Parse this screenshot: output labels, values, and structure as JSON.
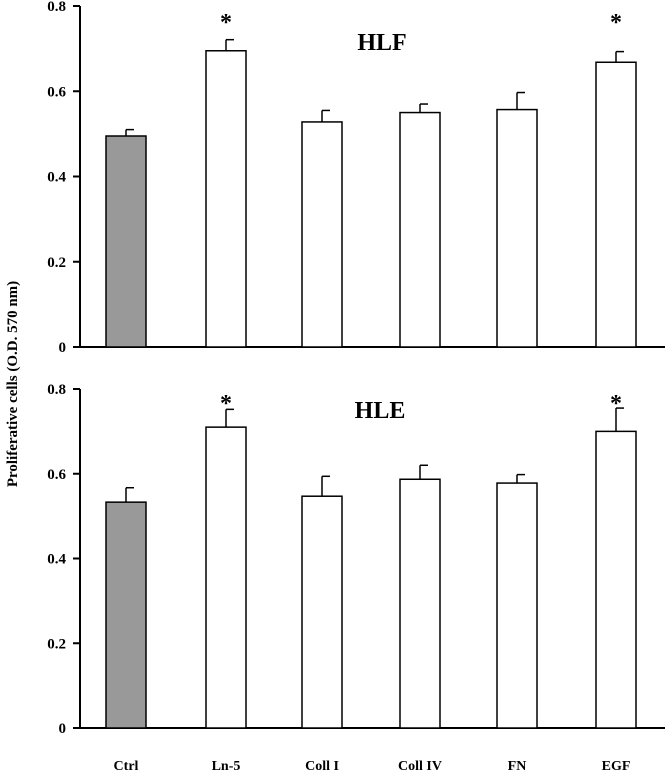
{
  "chart_data": [
    {
      "type": "bar",
      "title": "HLF",
      "categories": [
        "Ctrl",
        "Ln-5",
        "Coll I",
        "Coll IV",
        "FN",
        "EGF"
      ],
      "values": [
        0.495,
        0.695,
        0.528,
        0.55,
        0.557,
        0.668
      ],
      "errors": [
        0.015,
        0.026,
        0.027,
        0.02,
        0.04,
        0.025
      ],
      "significance": [
        "",
        "*",
        "",
        "",
        "",
        "*"
      ],
      "ylim": [
        0,
        0.8
      ],
      "yticks": [
        0,
        0.2,
        0.4,
        0.6,
        0.8
      ],
      "ytick_labels": [
        "0",
        "0.2",
        "0.4",
        "0.6",
        "0.8"
      ],
      "colors": {
        "control": "#999999",
        "treatment": "#ffffff",
        "edge": "#000000"
      }
    },
    {
      "type": "bar",
      "title": "HLE",
      "categories": [
        "Ctrl",
        "Ln-5",
        "Coll I",
        "Coll IV",
        "FN",
        "EGF"
      ],
      "values": [
        0.533,
        0.71,
        0.547,
        0.587,
        0.578,
        0.7
      ],
      "errors": [
        0.034,
        0.042,
        0.047,
        0.033,
        0.02,
        0.055
      ],
      "significance": [
        "",
        "*",
        "",
        "",
        "",
        "*"
      ],
      "ylim": [
        0,
        0.8
      ],
      "yticks": [
        0,
        0.2,
        0.4,
        0.6,
        0.8
      ],
      "ytick_labels": [
        "0",
        "0.2",
        "0.4",
        "0.6",
        "0.8"
      ],
      "colors": {
        "control": "#999999",
        "treatment": "#ffffff",
        "edge": "#000000"
      }
    }
  ],
  "ylabel": "Proliferative cells (O.D. 570 nm)",
  "xlabels": [
    "Ctrl",
    "Ln-5",
    "Coll I",
    "Coll IV",
    "FN",
    "EGF"
  ]
}
